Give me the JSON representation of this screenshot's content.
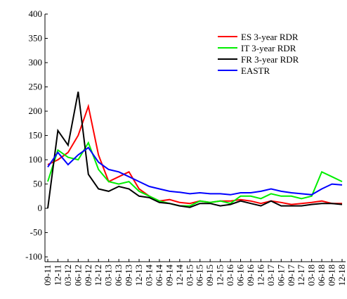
{
  "chart_data": {
    "type": "line",
    "categories": [
      "09-11",
      "12-11",
      "03-12",
      "06-12",
      "09-12",
      "12-12",
      "03-13",
      "06-13",
      "09-13",
      "12-13",
      "03-14",
      "06-14",
      "09-14",
      "12-14",
      "03-15",
      "06-15",
      "09-15",
      "12-15",
      "03-16",
      "06-16",
      "09-16",
      "12-16",
      "03-17",
      "06-17",
      "09-17",
      "12-17",
      "03-18",
      "06-18",
      "09-18",
      "12-18"
    ],
    "series": [
      {
        "name": "ES 3-year RDR",
        "color": "#ff0000",
        "values": [
          90,
          100,
          115,
          150,
          210,
          110,
          55,
          65,
          75,
          40,
          25,
          15,
          18,
          12,
          10,
          15,
          12,
          15,
          15,
          18,
          15,
          10,
          15,
          12,
          8,
          10,
          12,
          15,
          10,
          10
        ]
      },
      {
        "name": "IT 3-year RDR",
        "color": "#00ee00",
        "values": [
          55,
          120,
          105,
          100,
          135,
          80,
          55,
          50,
          55,
          35,
          25,
          15,
          10,
          5,
          5,
          15,
          12,
          15,
          10,
          25,
          25,
          20,
          30,
          25,
          25,
          20,
          25,
          75,
          65,
          55
        ]
      },
      {
        "name": "FR 3-year RDR",
        "color": "#000000",
        "values": [
          0,
          160,
          130,
          240,
          70,
          40,
          35,
          45,
          40,
          25,
          22,
          12,
          10,
          5,
          2,
          10,
          10,
          5,
          8,
          15,
          10,
          5,
          15,
          5,
          5,
          5,
          8,
          10,
          10,
          8
        ]
      },
      {
        "name": "EASTR",
        "color": "#0000ff",
        "values": [
          85,
          115,
          90,
          110,
          125,
          95,
          80,
          75,
          65,
          55,
          45,
          40,
          35,
          33,
          30,
          32,
          30,
          30,
          28,
          32,
          32,
          35,
          40,
          35,
          32,
          30,
          28,
          40,
          50,
          48
        ]
      }
    ],
    "ylim": [
      -110,
      400
    ],
    "yticks": [
      -100,
      -50,
      0,
      50,
      100,
      150,
      200,
      250,
      300,
      350,
      400
    ],
    "legend": "upper right"
  }
}
